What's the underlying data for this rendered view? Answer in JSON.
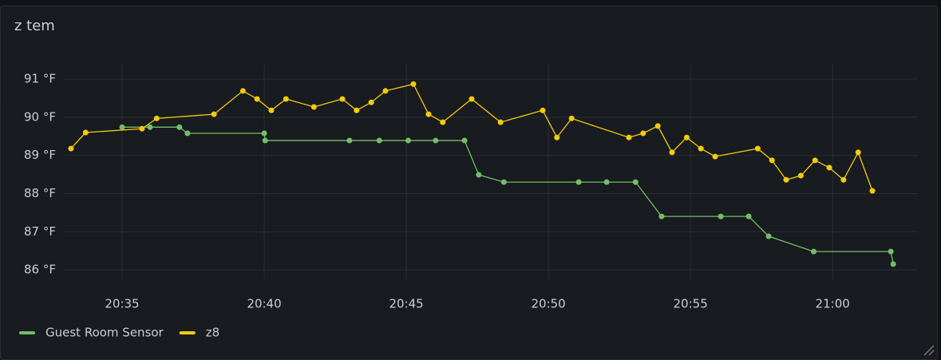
{
  "chart_data": {
    "type": "line",
    "title": "z tem",
    "xlim": [
      "20:32:57",
      "21:03:00"
    ],
    "xticks": [
      "20:35",
      "20:40",
      "20:45",
      "20:50",
      "20:55",
      "21:00"
    ],
    "ylim": [
      85.75,
      91.4
    ],
    "yticks": [
      {
        "value": 86,
        "label": "86 °F"
      },
      {
        "value": 87,
        "label": "87 °F"
      },
      {
        "value": 88,
        "label": "88 °F"
      },
      {
        "value": 89,
        "label": "89 °F"
      },
      {
        "value": 90,
        "label": "90 °F"
      },
      {
        "value": 91,
        "label": "91 °F"
      }
    ],
    "grid": true,
    "legend": "bottom-left",
    "series": [
      {
        "name": "Guest Room Sensor",
        "color": "#73bf69",
        "x": [
          "20:35:00",
          "20:35:59",
          "20:37:01",
          "20:37:18",
          "20:40:00",
          "20:40:02",
          "20:43:00",
          "20:44:03",
          "20:45:04",
          "20:46:02",
          "20:47:03",
          "20:47:33",
          "20:48:26",
          "20:51:04",
          "20:52:03",
          "20:53:04",
          "20:53:59",
          "20:56:04",
          "20:57:03",
          "20:57:45",
          "20:59:20",
          "21:02:03",
          "21:02:08"
        ],
        "values": [
          89.74,
          89.74,
          89.74,
          89.58,
          89.58,
          89.39,
          89.39,
          89.39,
          89.39,
          89.39,
          89.39,
          88.49,
          88.3,
          88.3,
          88.3,
          88.3,
          87.4,
          87.4,
          87.4,
          86.88,
          86.48,
          86.48,
          86.15
        ]
      },
      {
        "name": "z8",
        "color": "#f2cc0c",
        "x": [
          "20:33:12",
          "20:33:43",
          "20:35:42",
          "20:36:13",
          "20:38:14",
          "20:39:15",
          "20:39:45",
          "20:40:15",
          "20:40:46",
          "20:41:45",
          "20:42:45",
          "20:43:15",
          "20:43:46",
          "20:44:16",
          "20:45:15",
          "20:45:47",
          "20:46:17",
          "20:47:18",
          "20:48:19",
          "20:49:48",
          "20:50:18",
          "20:50:49",
          "20:52:50",
          "20:53:20",
          "20:53:51",
          "20:54:21",
          "20:54:52",
          "20:55:22",
          "20:55:52",
          "20:57:22",
          "20:57:52",
          "20:58:22",
          "20:58:53",
          "20:59:23",
          "20:59:53",
          "21:00:23",
          "21:00:54",
          "21:01:24"
        ],
        "values": [
          89.18,
          89.6,
          89.7,
          89.97,
          90.08,
          90.69,
          90.48,
          90.18,
          90.48,
          90.27,
          90.48,
          90.18,
          90.39,
          90.69,
          90.87,
          90.08,
          89.87,
          90.48,
          89.87,
          90.18,
          89.47,
          89.97,
          89.47,
          89.58,
          89.77,
          89.08,
          89.47,
          89.18,
          88.97,
          89.18,
          88.87,
          88.36,
          88.47,
          88.87,
          88.68,
          88.36,
          89.08,
          88.07
        ]
      }
    ]
  }
}
